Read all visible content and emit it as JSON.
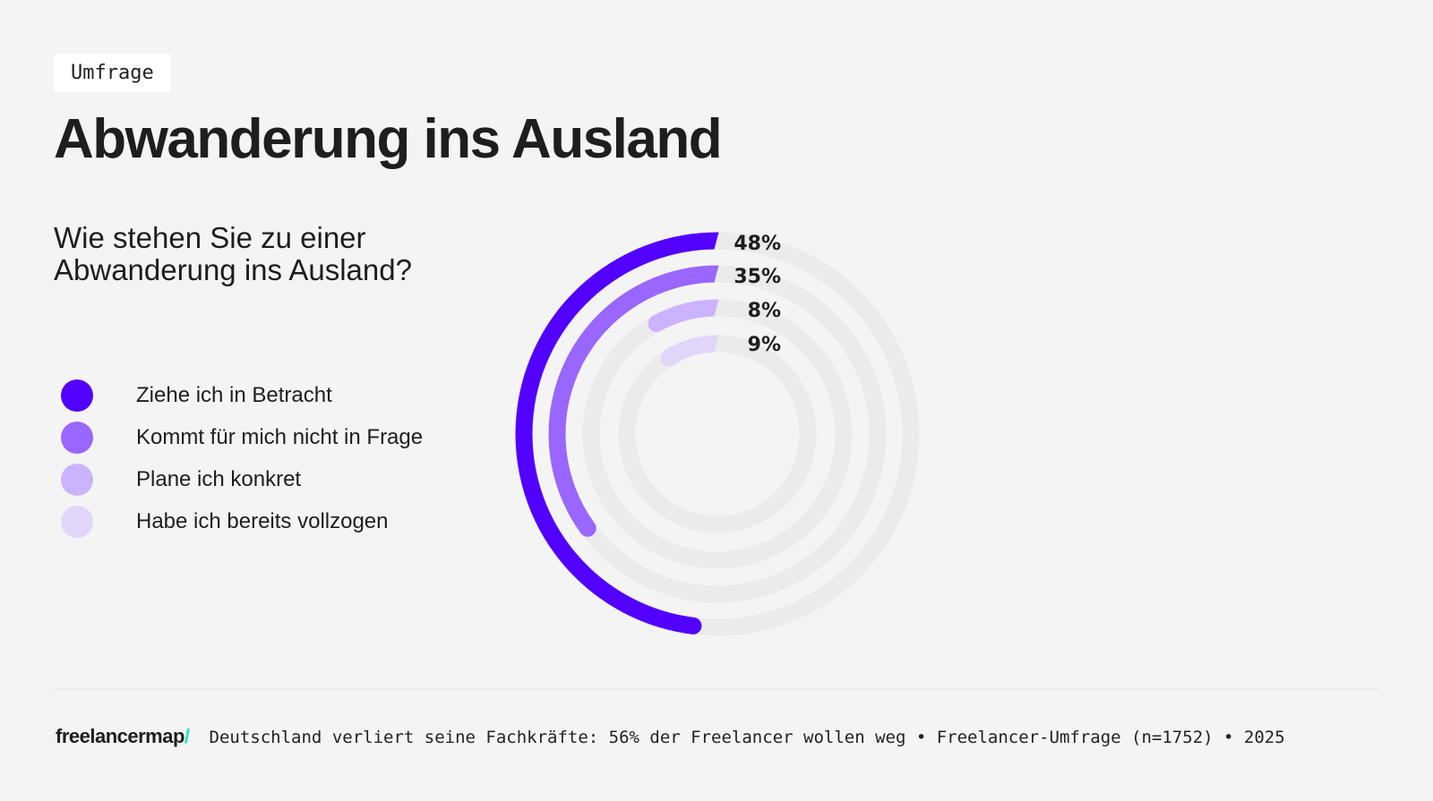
{
  "tag": "Umfrage",
  "title": "Abwanderung ins Ausland",
  "question": "Wie stehen Sie zu einer Abwanderung ins Ausland?",
  "chart_data": {
    "type": "radial-bar",
    "track_color": "#ebebeb",
    "series": [
      {
        "name": "Ziehe ich in Betracht",
        "value": 48,
        "label": "48%",
        "color": "#5200ff"
      },
      {
        "name": "Kommt für mich nicht in Frage",
        "value": 35,
        "label": "35%",
        "color": "#9966ff"
      },
      {
        "name": "Plane ich konkret",
        "value": 8,
        "label": "8%",
        "color": "#cbb3ff"
      },
      {
        "name": "Habe ich bereits vollzogen",
        "value": 9,
        "label": "9%",
        "color": "#e0d6fa"
      }
    ],
    "legend_position": "left"
  },
  "footer": {
    "logo": "freelancermap",
    "logo_slash": "/",
    "source": "Deutschland verliert seine Fachkräfte: 56% der Freelancer wollen weg • Freelancer-Umfrage (n=1752) • 2025"
  }
}
